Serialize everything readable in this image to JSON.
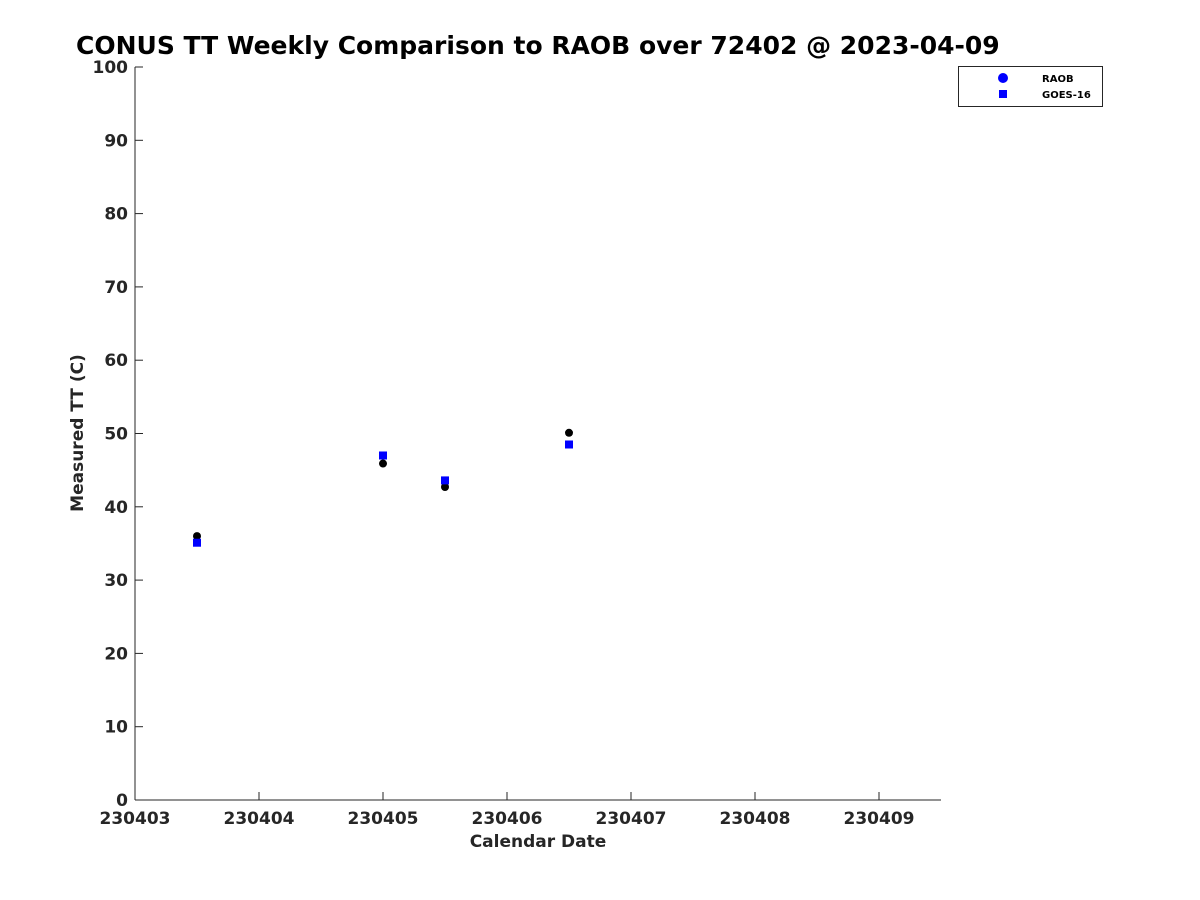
{
  "chart_data": {
    "type": "scatter",
    "title": "CONUS TT Weekly Comparison to RAOB over 72402 @ 2023-04-09",
    "xlabel": "Calendar Date",
    "ylabel": "Measured TT (C)",
    "xlim": [
      "2023-04-03",
      "2023-04-09 12:00"
    ],
    "ylim": [
      0,
      100
    ],
    "x_ticks": [
      "230403",
      "230404",
      "230405",
      "230406",
      "230407",
      "230408",
      "230409"
    ],
    "y_ticks": [
      0,
      10,
      20,
      30,
      40,
      50,
      60,
      70,
      80,
      90,
      100
    ],
    "grid": false,
    "legend": "top-right",
    "series": [
      {
        "name": "RAOB",
        "marker": "circle",
        "color": "#000000",
        "legend_color": "#0000ff",
        "points": [
          {
            "x": "2023-04-03 12:00",
            "y": 36.0
          },
          {
            "x": "2023-04-05 00:00",
            "y": 45.9
          },
          {
            "x": "2023-04-05 12:00",
            "y": 42.7
          },
          {
            "x": "2023-04-06 12:00",
            "y": 50.1
          }
        ]
      },
      {
        "name": "GOES-16",
        "marker": "square",
        "color": "#0000ff",
        "legend_color": "#0000ff",
        "points": [
          {
            "x": "2023-04-03 12:00",
            "y": 35.1
          },
          {
            "x": "2023-04-05 00:00",
            "y": 47.0
          },
          {
            "x": "2023-04-05 12:00",
            "y": 43.6
          },
          {
            "x": "2023-04-06 12:00",
            "y": 48.5
          }
        ]
      }
    ]
  }
}
